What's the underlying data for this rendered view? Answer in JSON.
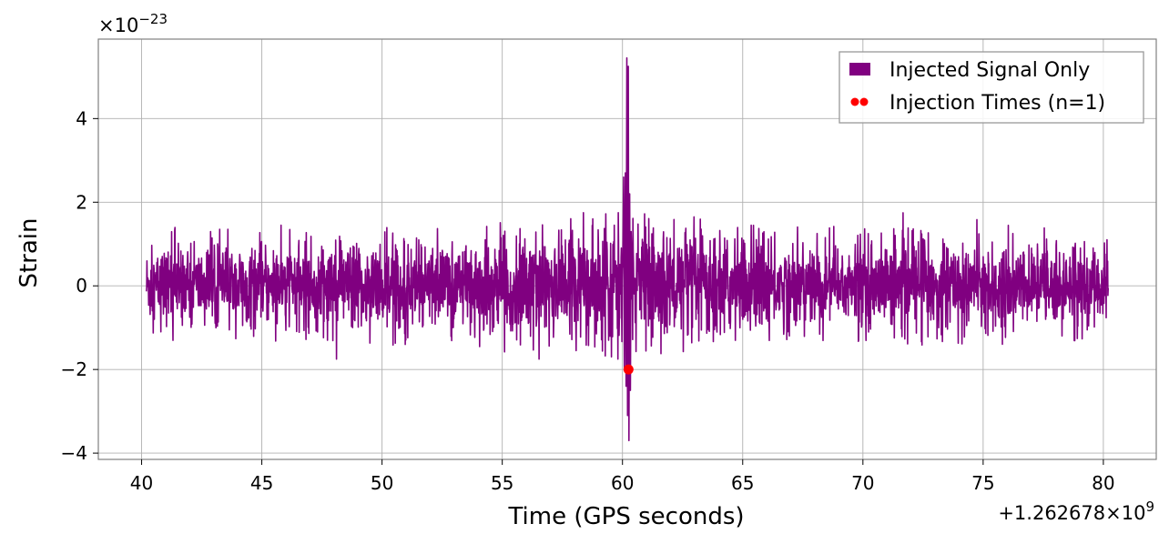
{
  "chart_data": {
    "type": "line",
    "xlabel": "Time (GPS seconds)",
    "ylabel": "Strain",
    "x_offset_label": "+1.262678×10",
    "x_offset_exponent": "9",
    "y_multiplier_label": "×10",
    "y_multiplier_exponent": "−23",
    "xlim": [
      38.2,
      82.2
    ],
    "ylim": [
      -4.15,
      5.9
    ],
    "x_ticks": [
      40,
      45,
      50,
      55,
      60,
      65,
      70,
      75,
      80
    ],
    "x_tick_labels": [
      "40",
      "45",
      "50",
      "55",
      "60",
      "65",
      "70",
      "75",
      "80"
    ],
    "y_ticks": [
      -4,
      -2,
      0,
      2,
      4
    ],
    "y_tick_labels": [
      "−4",
      "−2",
      "0",
      "2",
      "4"
    ],
    "grid": true,
    "legend_position": "top-right",
    "series": [
      {
        "name": "Injected Signal Only",
        "kind": "line",
        "color": "#800080",
        "x_range": [
          40.2,
          80.2
        ],
        "baseline_amplitude": 0.7,
        "spike_x": 60.2,
        "spike_max": 5.45,
        "spike_min": -3.7
      },
      {
        "name": "Injection Times (n=1)",
        "kind": "scatter",
        "color": "#ff0000",
        "points": [
          {
            "x": 60.25,
            "y": -2.0
          }
        ]
      }
    ]
  }
}
